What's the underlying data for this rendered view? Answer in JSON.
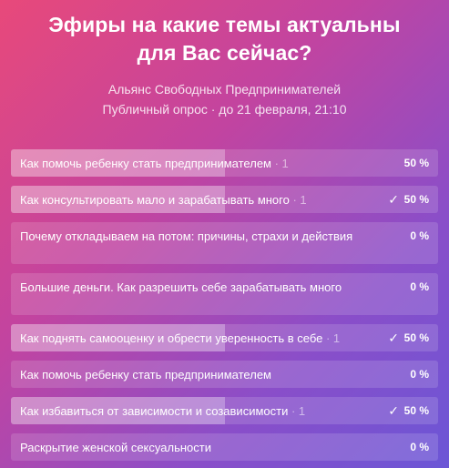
{
  "poll": {
    "title_line1": "Эфиры на какие темы актуальны",
    "title_line2": "для Вас сейчас?",
    "author": "Альянс Свободных Предпринимателей",
    "meta": "Публичный опрос · до 21 февраля, 21:10",
    "check_icon": "✓",
    "options": [
      {
        "label": "Как помочь ребенку стать предпринимателем",
        "count": " · 1",
        "percent": "50 %",
        "fill": 0.5,
        "checked": false
      },
      {
        "label": "Как консультировать мало и зарабатывать много",
        "count": " · 1",
        "percent": "50 %",
        "fill": 0.5,
        "checked": true
      },
      {
        "label": "Почему откладываем на потом: причины, страхи и действия",
        "count": "",
        "percent": "0 %",
        "fill": 0,
        "checked": false
      },
      {
        "label": "Большие деньги. Как разрешить себе зарабатывать много",
        "count": "",
        "percent": "0 %",
        "fill": 0,
        "checked": false
      },
      {
        "label": "Как поднять самооценку и обрести уверенность в себе",
        "count": " · 1",
        "percent": "50 %",
        "fill": 0.5,
        "checked": true
      },
      {
        "label": "Как помочь ребенку стать предпринимателем",
        "count": "",
        "percent": "0 %",
        "fill": 0,
        "checked": false
      },
      {
        "label": "Как избавиться от зависимости и созависимости",
        "count": " · 1",
        "percent": "50 %",
        "fill": 0.5,
        "checked": true
      },
      {
        "label": "Раскрытие женской сексуальности",
        "count": "",
        "percent": "0 %",
        "fill": 0,
        "checked": false
      }
    ]
  }
}
